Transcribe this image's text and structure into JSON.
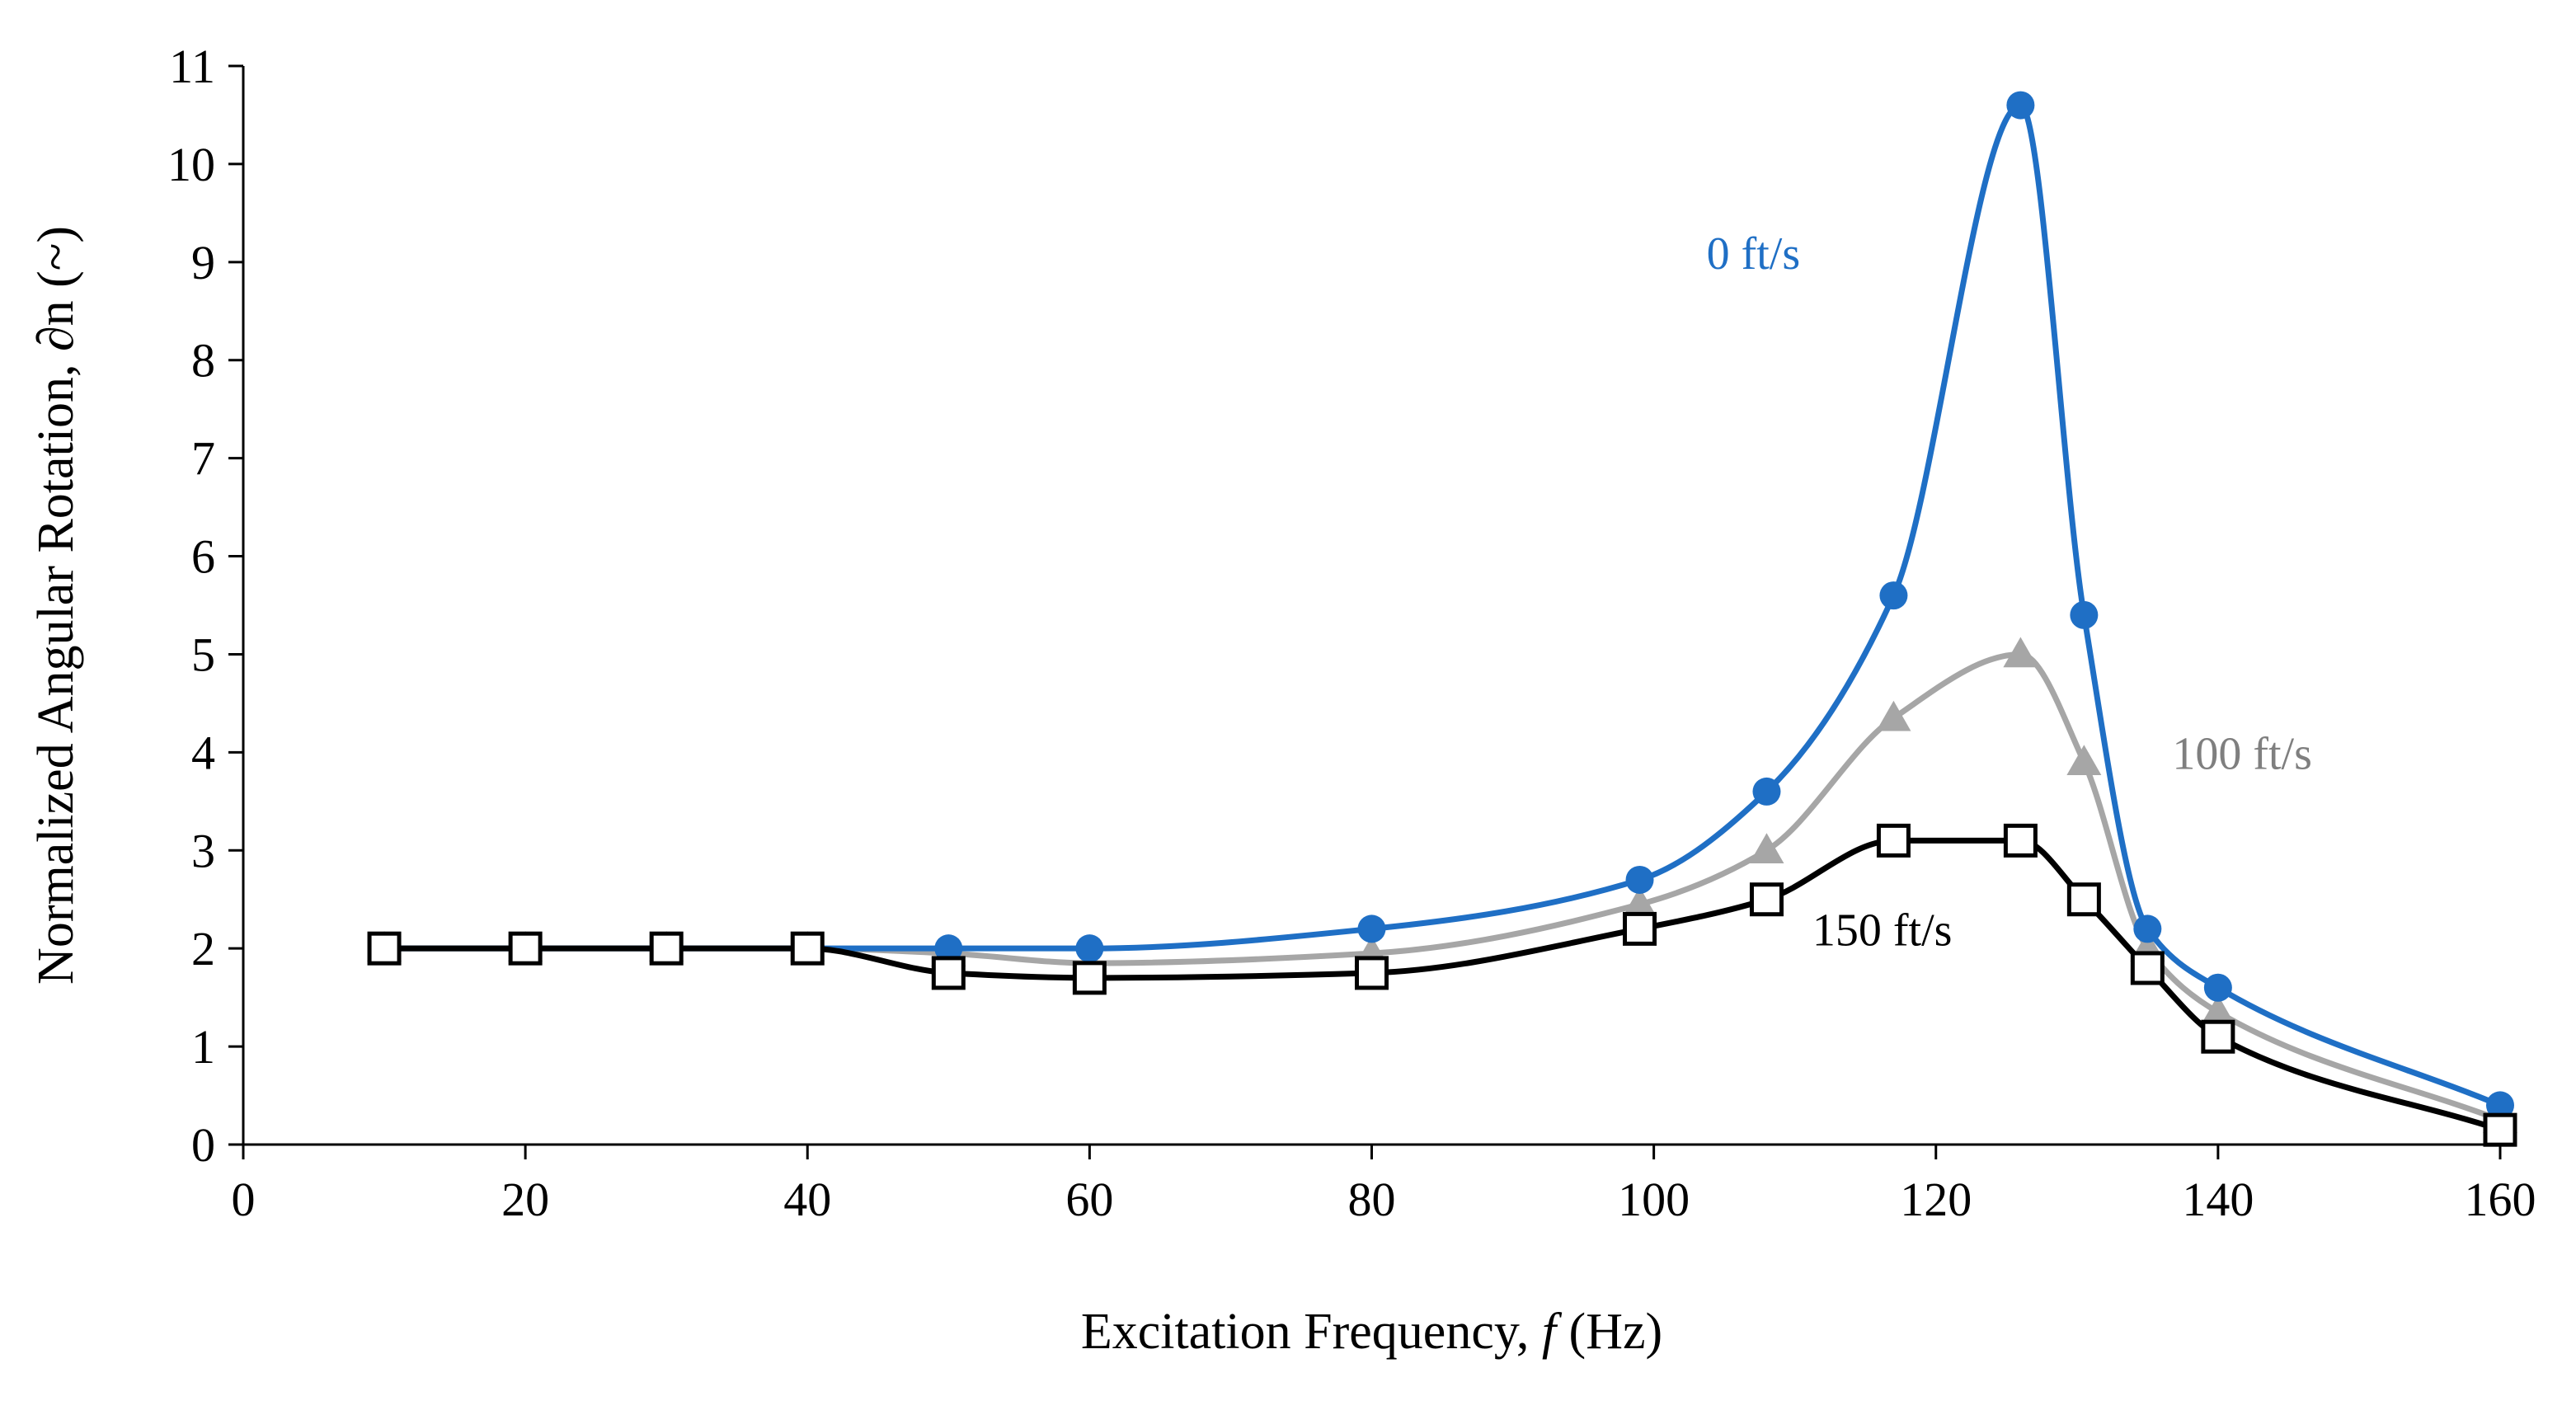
{
  "chart_data": {
    "type": "line",
    "title": "",
    "xlabel_prefix": "Excitation Frequency, ",
    "xlabel_symbol": "f",
    "xlabel_suffix": " (Hz)",
    "ylabel": "Normalized Angular Rotation, ∂n (~)",
    "xlim": [
      0,
      160
    ],
    "ylim": [
      0,
      11
    ],
    "xticks": [
      0,
      20,
      40,
      60,
      80,
      100,
      120,
      140,
      160
    ],
    "yticks": [
      0,
      1,
      2,
      3,
      4,
      5,
      6,
      7,
      8,
      9,
      10,
      11
    ],
    "grid": false,
    "x": [
      10,
      20,
      30,
      40,
      50,
      60,
      80,
      99,
      108,
      117,
      126,
      130.5,
      135,
      140,
      160
    ],
    "series": [
      {
        "name": "0 ft/s",
        "label": "0 ft/s",
        "color": "#1f6fc5",
        "marker": "circle",
        "values": [
          2.0,
          2.0,
          2.0,
          2.0,
          2.0,
          2.0,
          2.2,
          2.7,
          3.6,
          5.6,
          10.6,
          5.4,
          2.2,
          1.6,
          0.4
        ]
      },
      {
        "name": "100 ft/s",
        "label": "100 ft/s",
        "color": "#a6a6a6",
        "marker": "triangle",
        "values": [
          2.0,
          2.0,
          2.0,
          2.0,
          1.95,
          1.85,
          1.95,
          2.45,
          3.0,
          4.35,
          5.0,
          3.9,
          2.0,
          1.35,
          0.25
        ]
      },
      {
        "name": "150 ft/s",
        "label": "150 ft/s",
        "color": "#000000",
        "marker": "square",
        "values": [
          2.0,
          2.0,
          2.0,
          2.0,
          1.75,
          1.7,
          1.75,
          2.2,
          2.5,
          3.1,
          3.1,
          2.5,
          1.8,
          1.1,
          0.15
        ]
      }
    ]
  }
}
